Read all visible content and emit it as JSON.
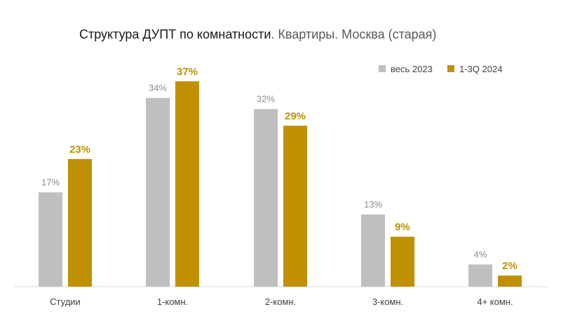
{
  "chart_data": {
    "type": "bar",
    "title": "Структура ДУПТ по комнатности",
    "subtitle": ". Квартиры. Москва (старая)",
    "categories": [
      "Студии",
      "1-комн.",
      "2-комн.",
      "3-комн.",
      "4+ комн."
    ],
    "series": [
      {
        "name": "весь 2023",
        "values": [
          17,
          34,
          32,
          13,
          4
        ],
        "labels": [
          "17%",
          "34%",
          "32%",
          "13%",
          "4%"
        ],
        "color": "#bfbfbf"
      },
      {
        "name": "1-3Q 2024",
        "values": [
          23,
          37,
          29,
          9,
          2
        ],
        "labels": [
          "23%",
          "37%",
          "29%",
          "9%",
          "2%"
        ],
        "color": "#c09000"
      }
    ],
    "ylim": [
      0,
      37
    ],
    "grid": false,
    "legend_position": "top-right",
    "xlabel": "",
    "ylabel": ""
  }
}
